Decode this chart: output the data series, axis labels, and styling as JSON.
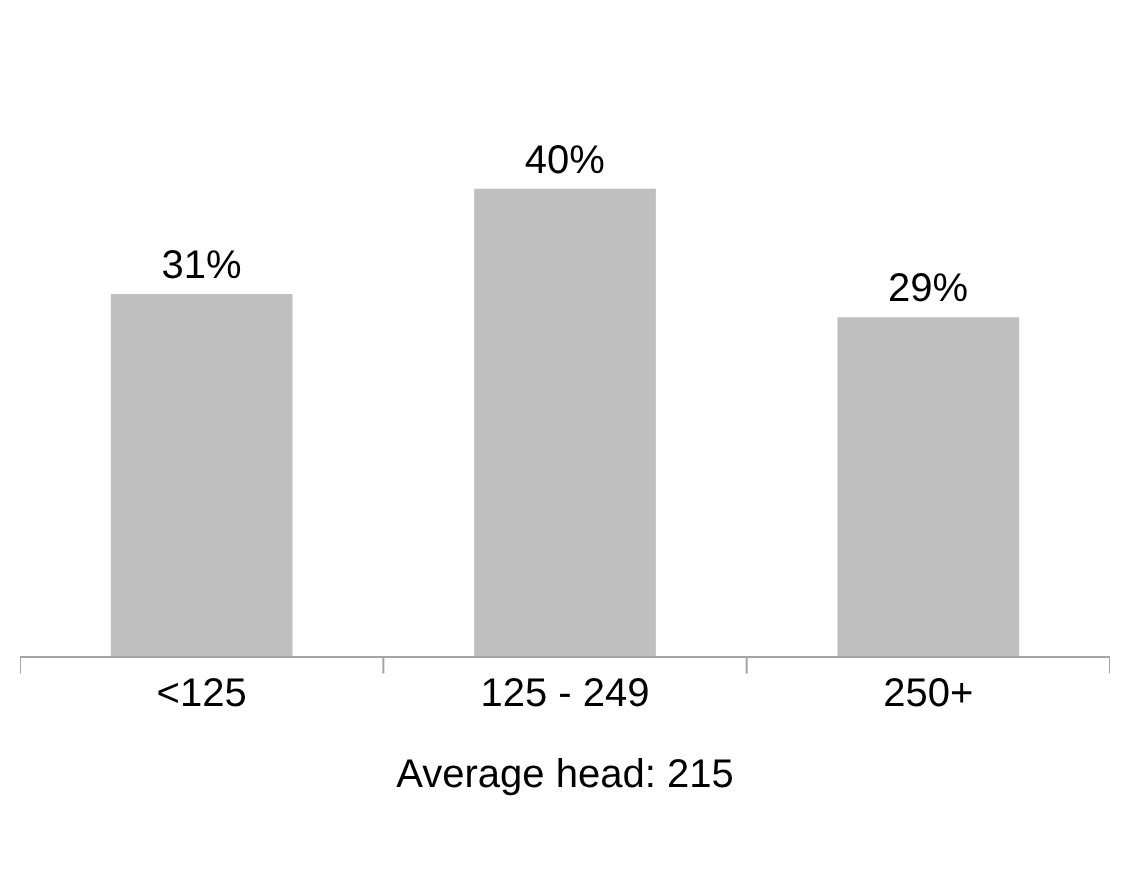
{
  "chart_data": {
    "type": "bar",
    "categories": [
      "<125",
      "125 - 249",
      "250+"
    ],
    "values": [
      31,
      40,
      29
    ],
    "value_labels": [
      "31%",
      "40%",
      "29%"
    ],
    "color": "#bfbfbf",
    "xlabel": "Average head: 215"
  }
}
